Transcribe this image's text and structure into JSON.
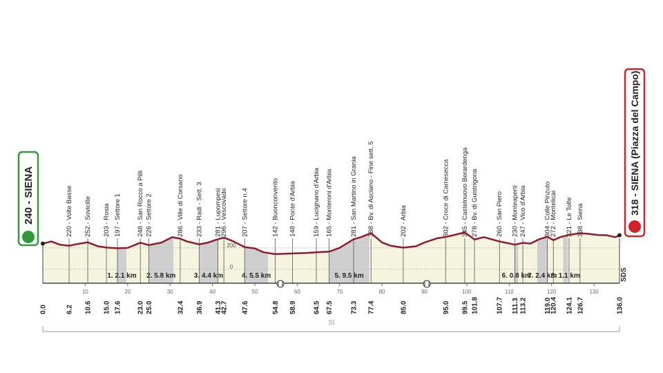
{
  "chart_data": {
    "type": "area",
    "start": "240 - SIENA",
    "finish": "318 - SIENA (Piazza del Campo)",
    "axis_note": "SI",
    "logo": "SDS",
    "color": "#8c1c2e",
    "x": [
      0,
      2,
      4,
      6.2,
      8,
      10.6,
      13,
      15,
      17.6,
      20,
      23,
      25,
      28,
      30.5,
      32.4,
      34,
      36.9,
      39,
      41.3,
      42.7,
      45,
      47.6,
      50,
      52,
      54.8,
      58.9,
      62,
      64.5,
      67.5,
      70,
      73.3,
      75,
      77.4,
      80,
      82,
      85,
      88,
      90,
      93,
      95,
      97,
      99.5,
      101.8,
      104,
      107.7,
      109,
      111.3,
      113.2,
      115,
      117,
      119,
      120.4,
      122,
      124.1,
      126.7,
      129,
      131,
      133,
      135,
      136
    ],
    "values": [
      240,
      260,
      230,
      220,
      235,
      252,
      215,
      203,
      197,
      200,
      248,
      226,
      250,
      300,
      286,
      260,
      233,
      250,
      281,
      296,
      260,
      207,
      195,
      160,
      142,
      148,
      152,
      159,
      165,
      200,
      281,
      300,
      338,
      250,
      220,
      202,
      215,
      250,
      290,
      302,
      320,
      345,
      278,
      300,
      260,
      250,
      230,
      247,
      240,
      280,
      304,
      272,
      300,
      321,
      338,
      330,
      320,
      318,
      300,
      318
    ],
    "xlim": [
      0,
      136
    ],
    "xticks": [
      10,
      20,
      30,
      40,
      50,
      60,
      70,
      80,
      90,
      100,
      110,
      120,
      130
    ],
    "ylim": [
      -130,
      400
    ],
    "yticks": [
      0,
      200
    ],
    "grid": true,
    "waypoints": [
      {
        "km": {
          "value": 0,
          "label": "0.0"
        }
      },
      {
        "km": 6.2,
        "label": "220 - Volte Basse"
      },
      {
        "km": 10.6,
        "label": "252 - Sovicille"
      },
      {
        "km": {
          "value": 15,
          "label": "15.0"
        },
        "label": "203 - Rosia"
      },
      {
        "km": 17.6,
        "label": "197 - Settore 1"
      },
      {
        "km": {
          "value": 23,
          "label": "23.0"
        },
        "label": "248 - San Rocco a Pilli"
      },
      {
        "km": {
          "value": 25,
          "label": "25.0"
        },
        "label": "226 - Settore 2"
      },
      {
        "km": 32.4,
        "label": "286 - Ville di Corsano"
      },
      {
        "km": 36.9,
        "label": "233 - Radi - Sett. 3"
      },
      {
        "km": 41.3,
        "label": "281 - Lupompesi"
      },
      {
        "km": 42.7,
        "label": "296 - Vescovado"
      },
      {
        "km": 47.6,
        "label": "207 - Settore n.4"
      },
      {
        "km": 54.8,
        "label": "142 - Buonconvento"
      },
      {
        "km": 58.9,
        "label": "148 - Ponte d'Arbia"
      },
      {
        "km": 64.5,
        "label": "159 - Lucignano d'Arbia"
      },
      {
        "km": 67.5,
        "label": "165 - Monteroni d'Arbia"
      },
      {
        "km": 73.3,
        "label": "281 - San Martino in Grania"
      },
      {
        "km": 77.4,
        "label": "338 - Bv. di Asciano - Fine sett. 5"
      },
      {
        "km": {
          "value": 85,
          "label": "85.0"
        },
        "label": "202 - Arbia"
      },
      {
        "km": {
          "value": 95,
          "label": "95.0"
        },
        "label": "302 - Croce di Camesecca"
      },
      {
        "km": 99.5,
        "label": "345 - Castelnuovo Berardenga"
      },
      {
        "km": 101.8,
        "label": "278 - Bv. di Guistrigona"
      },
      {
        "km": 107.7,
        "label": "260 - San Piero"
      },
      {
        "km": 111.3,
        "label": "230 - Monteaperti"
      },
      {
        "km": 113.2,
        "label": "247 - Vico d'Arbia"
      },
      {
        "km": {
          "value": 119,
          "label": "119.0"
        },
        "label": "304 - Colle Pinzuto"
      },
      {
        "km": 120.4,
        "label": "272 - Montelicai"
      },
      {
        "km": 124.1,
        "label": "321 - Le Tolfe"
      },
      {
        "km": 126.7,
        "label": "338 - Siena"
      },
      {
        "km": {
          "value": 136,
          "label": "136.0"
        }
      }
    ],
    "sectors": [
      {
        "label": "1. 2.1 km",
        "start": 17.6,
        "end": 19.7
      },
      {
        "label": "2. 5.8 km",
        "start": 25,
        "end": 30.8
      },
      {
        "label": "3. 4.4 km",
        "start": 36.9,
        "end": 41.3
      },
      {
        "label": "4. 5.5 km",
        "start": 47.6,
        "end": 53.1
      },
      {
        "label": "5. 9.5 km",
        "start": 67.5,
        "end": 77
      },
      {
        "label": "6. 0.8 km",
        "start": 111.3,
        "end": 112.1
      },
      {
        "label": "7. 2.4 km",
        "start": 116.6,
        "end": 119
      },
      {
        "label": "8. 1.1 km",
        "start": 122.7,
        "end": 123.8
      }
    ]
  }
}
